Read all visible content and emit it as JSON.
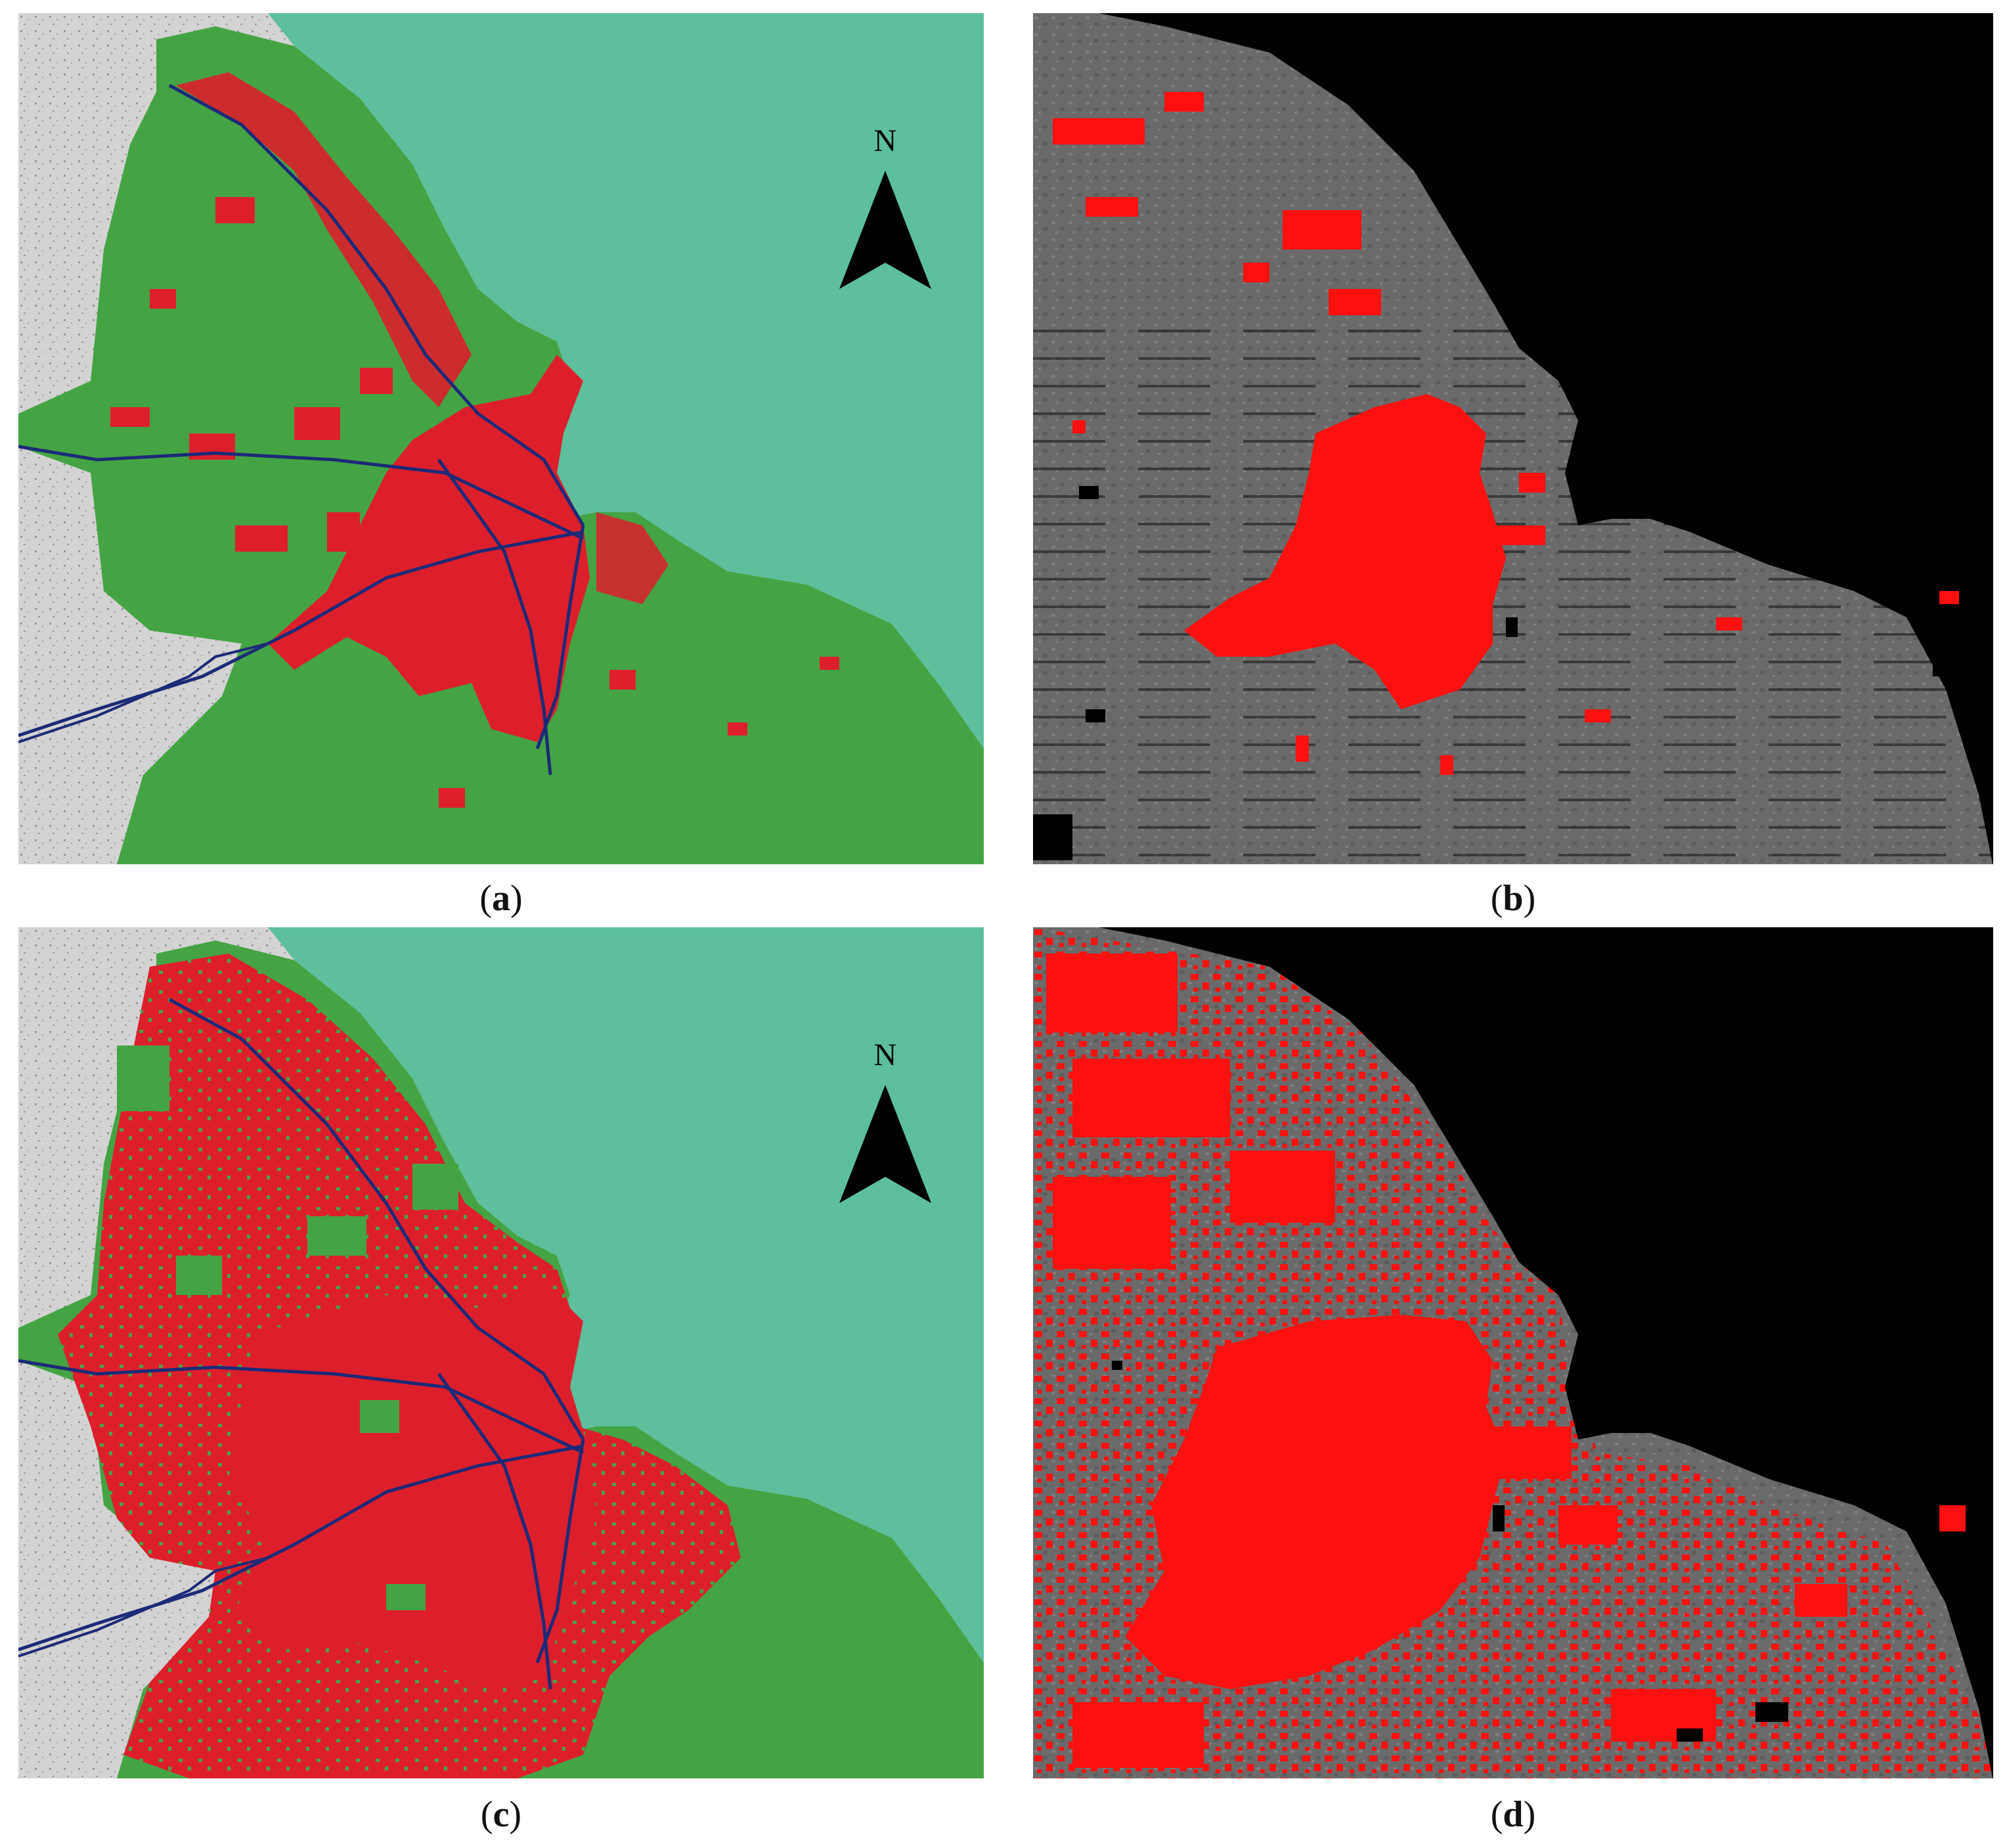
{
  "figure": {
    "panels": [
      {
        "id": "a",
        "caption_open": "(",
        "caption_letter": "a",
        "caption_close": ")",
        "kind": "classified-map",
        "north_label": "N"
      },
      {
        "id": "b",
        "caption_open": "(",
        "caption_letter": "b",
        "caption_close": ")",
        "kind": "satellite-overlay"
      },
      {
        "id": "c",
        "caption_open": "(",
        "caption_letter": "c",
        "caption_close": ")",
        "kind": "classified-map",
        "north_label": "N"
      },
      {
        "id": "d",
        "caption_open": "(",
        "caption_letter": "d",
        "caption_close": ")",
        "kind": "satellite-overlay"
      }
    ],
    "colors": {
      "sea": "#5dbf9c",
      "outside_land": "#cfcfcf",
      "vegetation": "#44a444",
      "urban": "#dd1f2c",
      "roads": "#1c2a78",
      "satellite_land": "#6e6e6e",
      "satellite_sea": "#000000",
      "satellite_urban": "#ff1010"
    }
  }
}
